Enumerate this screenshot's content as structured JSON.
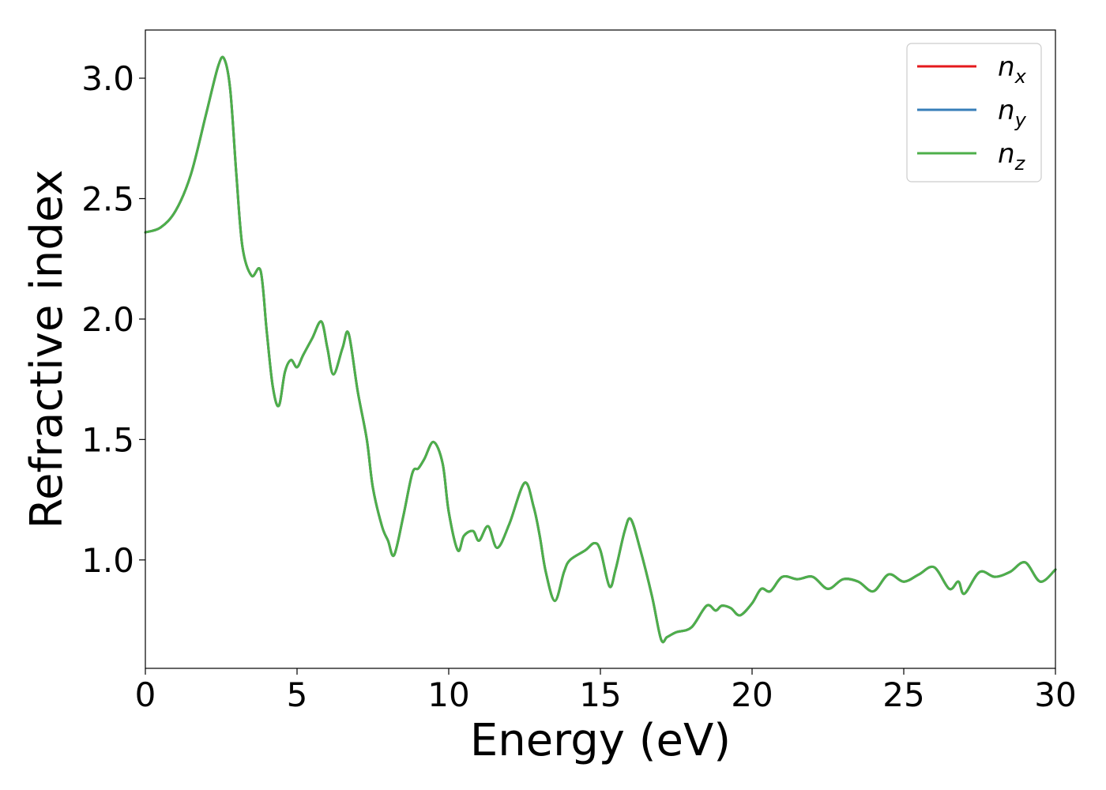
{
  "chart_data": {
    "type": "line",
    "xlabel": "Energy (eV)",
    "ylabel": "Refractive index",
    "xlim": [
      0,
      30
    ],
    "ylim": [
      0.55,
      3.2
    ],
    "xticks": [
      0,
      5,
      10,
      15,
      20,
      25,
      30
    ],
    "xtick_labels": [
      "0",
      "5",
      "10",
      "15",
      "20",
      "25",
      "30"
    ],
    "yticks": [
      1.0,
      1.5,
      2.0,
      2.5,
      3.0
    ],
    "ytick_labels": [
      "1.0",
      "1.5",
      "2.0",
      "2.5",
      "3.0"
    ],
    "grid": false,
    "legend_position": "top-right",
    "series": [
      {
        "name": "n_x",
        "legend_base": "n",
        "legend_sub": "x",
        "color": "#e41a1c",
        "x": [
          0,
          0.5,
          1,
          1.5,
          2,
          2.4,
          2.6,
          2.8,
          3,
          3.2,
          3.5,
          3.8,
          4,
          4.2,
          4.4,
          4.6,
          4.8,
          5,
          5.2,
          5.5,
          5.8,
          6,
          6.2,
          6.5,
          6.7,
          7,
          7.3,
          7.5,
          7.8,
          8,
          8.2,
          8.5,
          8.8,
          9,
          9.2,
          9.5,
          9.8,
          10,
          10.3,
          10.5,
          10.8,
          11,
          11.3,
          11.6,
          12,
          12.5,
          12.8,
          13,
          13.2,
          13.5,
          13.8,
          14,
          14.5,
          14.8,
          15,
          15.3,
          15.5,
          15.8,
          16,
          16.3,
          16.7,
          17,
          17.2,
          17.5,
          18,
          18.5,
          18.8,
          19,
          19.3,
          19.6,
          20,
          20.3,
          20.6,
          21,
          21.5,
          22,
          22.5,
          23,
          23.5,
          24,
          24.5,
          25,
          25.5,
          26,
          26.5,
          26.8,
          27,
          27.5,
          28,
          28.5,
          29,
          29.5,
          30
        ],
        "y": [
          2.36,
          2.38,
          2.45,
          2.6,
          2.85,
          3.05,
          3.08,
          2.95,
          2.6,
          2.3,
          2.18,
          2.2,
          1.95,
          1.72,
          1.64,
          1.78,
          1.83,
          1.8,
          1.85,
          1.92,
          1.99,
          1.88,
          1.77,
          1.88,
          1.94,
          1.7,
          1.5,
          1.3,
          1.14,
          1.08,
          1.02,
          1.18,
          1.36,
          1.38,
          1.42,
          1.49,
          1.4,
          1.2,
          1.04,
          1.1,
          1.12,
          1.08,
          1.14,
          1.05,
          1.15,
          1.32,
          1.22,
          1.1,
          0.95,
          0.83,
          0.95,
          1.0,
          1.04,
          1.07,
          1.04,
          0.89,
          0.96,
          1.12,
          1.17,
          1.05,
          0.85,
          0.67,
          0.68,
          0.7,
          0.72,
          0.81,
          0.79,
          0.81,
          0.8,
          0.77,
          0.82,
          0.88,
          0.87,
          0.93,
          0.92,
          0.93,
          0.88,
          0.92,
          0.91,
          0.87,
          0.94,
          0.91,
          0.94,
          0.97,
          0.88,
          0.91,
          0.86,
          0.95,
          0.93,
          0.95,
          0.99,
          0.91,
          0.96
        ]
      },
      {
        "name": "n_y",
        "legend_base": "n",
        "legend_sub": "y",
        "color": "#377eb8",
        "x": [
          0,
          0.5,
          1,
          1.5,
          2,
          2.4,
          2.6,
          2.8,
          3,
          3.2,
          3.5,
          3.8,
          4,
          4.2,
          4.4,
          4.6,
          4.8,
          5,
          5.2,
          5.5,
          5.8,
          6,
          6.2,
          6.5,
          6.7,
          7,
          7.3,
          7.5,
          7.8,
          8,
          8.2,
          8.5,
          8.8,
          9,
          9.2,
          9.5,
          9.8,
          10,
          10.3,
          10.5,
          10.8,
          11,
          11.3,
          11.6,
          12,
          12.5,
          12.8,
          13,
          13.2,
          13.5,
          13.8,
          14,
          14.5,
          14.8,
          15,
          15.3,
          15.5,
          15.8,
          16,
          16.3,
          16.7,
          17,
          17.2,
          17.5,
          18,
          18.5,
          18.8,
          19,
          19.3,
          19.6,
          20,
          20.3,
          20.6,
          21,
          21.5,
          22,
          22.5,
          23,
          23.5,
          24,
          24.5,
          25,
          25.5,
          26,
          26.5,
          26.8,
          27,
          27.5,
          28,
          28.5,
          29,
          29.5,
          30
        ],
        "y": [
          2.36,
          2.38,
          2.45,
          2.6,
          2.85,
          3.05,
          3.08,
          2.95,
          2.6,
          2.3,
          2.18,
          2.2,
          1.95,
          1.72,
          1.64,
          1.78,
          1.83,
          1.8,
          1.85,
          1.92,
          1.99,
          1.88,
          1.77,
          1.88,
          1.94,
          1.7,
          1.5,
          1.3,
          1.14,
          1.08,
          1.02,
          1.18,
          1.36,
          1.38,
          1.42,
          1.49,
          1.4,
          1.2,
          1.04,
          1.1,
          1.12,
          1.08,
          1.14,
          1.05,
          1.15,
          1.32,
          1.22,
          1.1,
          0.95,
          0.83,
          0.95,
          1.0,
          1.04,
          1.07,
          1.04,
          0.89,
          0.96,
          1.12,
          1.17,
          1.05,
          0.85,
          0.67,
          0.68,
          0.7,
          0.72,
          0.81,
          0.79,
          0.81,
          0.8,
          0.77,
          0.82,
          0.88,
          0.87,
          0.93,
          0.92,
          0.93,
          0.88,
          0.92,
          0.91,
          0.87,
          0.94,
          0.91,
          0.94,
          0.97,
          0.88,
          0.91,
          0.86,
          0.95,
          0.93,
          0.95,
          0.99,
          0.91,
          0.96
        ]
      },
      {
        "name": "n_z",
        "legend_base": "n",
        "legend_sub": "z",
        "color": "#4daf4a",
        "x": [
          0,
          0.5,
          1,
          1.5,
          2,
          2.4,
          2.6,
          2.8,
          3,
          3.2,
          3.5,
          3.8,
          4,
          4.2,
          4.4,
          4.6,
          4.8,
          5,
          5.2,
          5.5,
          5.8,
          6,
          6.2,
          6.5,
          6.7,
          7,
          7.3,
          7.5,
          7.8,
          8,
          8.2,
          8.5,
          8.8,
          9,
          9.2,
          9.5,
          9.8,
          10,
          10.3,
          10.5,
          10.8,
          11,
          11.3,
          11.6,
          12,
          12.5,
          12.8,
          13,
          13.2,
          13.5,
          13.8,
          14,
          14.5,
          14.8,
          15,
          15.3,
          15.5,
          15.8,
          16,
          16.3,
          16.7,
          17,
          17.2,
          17.5,
          18,
          18.5,
          18.8,
          19,
          19.3,
          19.6,
          20,
          20.3,
          20.6,
          21,
          21.5,
          22,
          22.5,
          23,
          23.5,
          24,
          24.5,
          25,
          25.5,
          26,
          26.5,
          26.8,
          27,
          27.5,
          28,
          28.5,
          29,
          29.5,
          30
        ],
        "y": [
          2.36,
          2.38,
          2.45,
          2.6,
          2.85,
          3.05,
          3.08,
          2.95,
          2.6,
          2.3,
          2.18,
          2.2,
          1.95,
          1.72,
          1.64,
          1.78,
          1.83,
          1.8,
          1.85,
          1.92,
          1.99,
          1.88,
          1.77,
          1.88,
          1.94,
          1.7,
          1.5,
          1.3,
          1.14,
          1.08,
          1.02,
          1.18,
          1.36,
          1.38,
          1.42,
          1.49,
          1.4,
          1.2,
          1.04,
          1.1,
          1.12,
          1.08,
          1.14,
          1.05,
          1.15,
          1.32,
          1.22,
          1.1,
          0.95,
          0.83,
          0.95,
          1.0,
          1.04,
          1.07,
          1.04,
          0.89,
          0.96,
          1.12,
          1.17,
          1.05,
          0.85,
          0.67,
          0.68,
          0.7,
          0.72,
          0.81,
          0.79,
          0.81,
          0.8,
          0.77,
          0.82,
          0.88,
          0.87,
          0.93,
          0.92,
          0.93,
          0.88,
          0.92,
          0.91,
          0.87,
          0.94,
          0.91,
          0.94,
          0.97,
          0.88,
          0.91,
          0.86,
          0.95,
          0.93,
          0.95,
          0.99,
          0.91,
          0.96
        ]
      }
    ]
  }
}
